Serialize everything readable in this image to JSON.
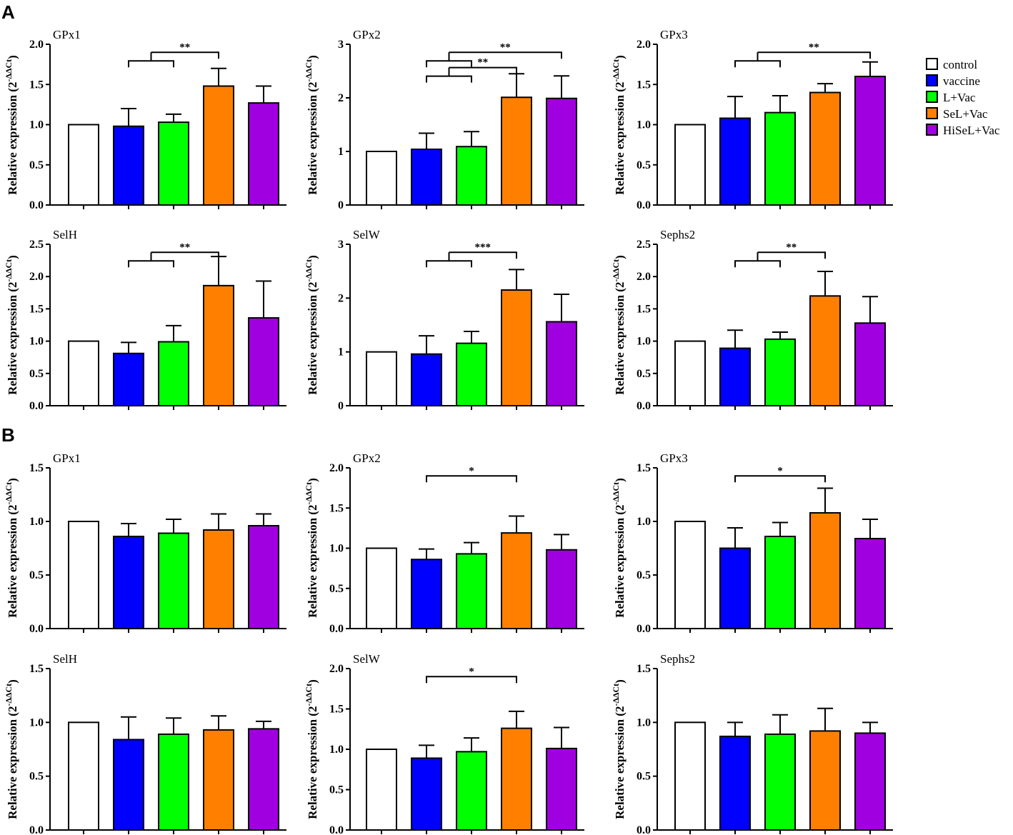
{
  "panels": [
    {
      "letter": "A"
    },
    {
      "letter": "B"
    }
  ],
  "colors": {
    "control": "#ffffff",
    "vaccine": "#0000ff",
    "L+Vac": "#00ff00",
    "SeL+Vac": "#ff8000",
    "HiSeL+Vac": "#a000e0",
    "axis": "#000000"
  },
  "legend": {
    "items": [
      {
        "label": "control",
        "color": "#ffffff"
      },
      {
        "label": "vaccine",
        "color": "#0000ff"
      },
      {
        "label": "L+Vac",
        "color": "#00ff00"
      },
      {
        "label": "SeL+Vac",
        "color": "#ff8000"
      },
      {
        "label": "HiSeL+Vac",
        "color": "#a000e0"
      }
    ]
  },
  "y_label_main": "Relative expression (2",
  "y_label_exp": "-ΔΔCt",
  "y_label_close": ")",
  "chart_data": [
    {
      "id": "A-GPx1",
      "panel": "A",
      "type": "bar",
      "title": "GPx1",
      "categories": [
        "control",
        "vaccine",
        "L+Vac",
        "SeL+Vac",
        "HiSeL+Vac"
      ],
      "values": [
        1.0,
        0.98,
        1.03,
        1.48,
        1.27
      ],
      "errors": [
        0,
        0.22,
        0.1,
        0.22,
        0.21
      ],
      "ylim": [
        0,
        2.0
      ],
      "yticks": [
        "0.0",
        "0.5",
        "1.0",
        "1.5",
        "2.0"
      ],
      "ylabel": "Relative expression (2^-ΔΔCt)",
      "sig": [
        {
          "text": "**",
          "from": [
            1,
            2
          ],
          "to": [
            3
          ]
        }
      ]
    },
    {
      "id": "A-GPx2",
      "panel": "A",
      "type": "bar",
      "title": "GPx2",
      "categories": [
        "control",
        "vaccine",
        "L+Vac",
        "SeL+Vac",
        "HiSeL+Vac"
      ],
      "values": [
        1.0,
        1.04,
        1.09,
        2.01,
        1.99
      ],
      "errors": [
        0,
        0.3,
        0.28,
        0.44,
        0.42
      ],
      "ylim": [
        0,
        3
      ],
      "yticks": [
        "0",
        "1",
        "2",
        "3"
      ],
      "ylabel": "Relative expression (2^-ΔΔCt)",
      "sig": [
        {
          "text": "**",
          "from": [
            1,
            2
          ],
          "to": [
            3
          ]
        },
        {
          "text": "**",
          "from": [
            1,
            2
          ],
          "to": [
            4
          ]
        }
      ]
    },
    {
      "id": "A-GPx3",
      "panel": "A",
      "type": "bar",
      "title": "GPx3",
      "categories": [
        "control",
        "vaccine",
        "L+Vac",
        "SeL+Vac",
        "HiSeL+Vac"
      ],
      "values": [
        1.0,
        1.08,
        1.15,
        1.4,
        1.6
      ],
      "errors": [
        0,
        0.27,
        0.21,
        0.11,
        0.18
      ],
      "ylim": [
        0,
        2.0
      ],
      "yticks": [
        "0.0",
        "0.5",
        "1.0",
        "1.5",
        "2.0"
      ],
      "ylabel": "Relative expression (2^-ΔΔCt)",
      "sig": [
        {
          "text": "**",
          "from": [
            1,
            2
          ],
          "to": [
            4
          ]
        }
      ]
    },
    {
      "id": "A-SelH",
      "panel": "A",
      "type": "bar",
      "title": "SelH",
      "categories": [
        "control",
        "vaccine",
        "L+Vac",
        "SeL+Vac",
        "HiSeL+Vac"
      ],
      "values": [
        1.0,
        0.81,
        0.99,
        1.86,
        1.36
      ],
      "errors": [
        0,
        0.17,
        0.25,
        0.45,
        0.57
      ],
      "ylim": [
        0,
        2.5
      ],
      "yticks": [
        "0.0",
        "0.5",
        "1.0",
        "1.5",
        "2.0",
        "2.5"
      ],
      "ylabel": "Relative expression (2^-ΔΔCt)",
      "sig": [
        {
          "text": "**",
          "from": [
            1,
            2
          ],
          "to": [
            3
          ]
        }
      ]
    },
    {
      "id": "A-SelW",
      "panel": "A",
      "type": "bar",
      "title": "SelW",
      "categories": [
        "control",
        "vaccine",
        "L+Vac",
        "SeL+Vac",
        "HiSeL+Vac"
      ],
      "values": [
        1.0,
        0.96,
        1.16,
        2.15,
        1.56
      ],
      "errors": [
        0,
        0.34,
        0.22,
        0.38,
        0.51
      ],
      "ylim": [
        0,
        3
      ],
      "yticks": [
        "0",
        "1",
        "2",
        "3"
      ],
      "ylabel": "Relative expression (2^-ΔΔCt)",
      "sig": [
        {
          "text": "***",
          "from": [
            1,
            2
          ],
          "to": [
            3
          ]
        }
      ]
    },
    {
      "id": "A-Sephs2",
      "panel": "A",
      "type": "bar",
      "title": "Sephs2",
      "categories": [
        "control",
        "vaccine",
        "L+Vac",
        "SeL+Vac",
        "HiSeL+Vac"
      ],
      "values": [
        1.0,
        0.89,
        1.03,
        1.7,
        1.28
      ],
      "errors": [
        0,
        0.28,
        0.11,
        0.38,
        0.41
      ],
      "ylim": [
        0,
        2.5
      ],
      "yticks": [
        "0.0",
        "0.5",
        "1.0",
        "1.5",
        "2.0",
        "2.5"
      ],
      "ylabel": "Relative expression (2^-ΔΔCt)",
      "sig": [
        {
          "text": "**",
          "from": [
            1,
            2
          ],
          "to": [
            3
          ]
        }
      ]
    },
    {
      "id": "B-GPx1",
      "panel": "B",
      "type": "bar",
      "title": "GPx1",
      "categories": [
        "control",
        "vaccine",
        "L+Vac",
        "SeL+Vac",
        "HiSeL+Vac"
      ],
      "values": [
        1.0,
        0.86,
        0.89,
        0.92,
        0.96
      ],
      "errors": [
        0,
        0.12,
        0.13,
        0.15,
        0.11
      ],
      "ylim": [
        0,
        1.5
      ],
      "yticks": [
        "0.0",
        "0.5",
        "1.0",
        "1.5"
      ],
      "ylabel": "Relative expression (2^-ΔΔCt)",
      "sig": []
    },
    {
      "id": "B-GPx2",
      "panel": "B",
      "type": "bar",
      "title": "GPx2",
      "categories": [
        "control",
        "vaccine",
        "L+Vac",
        "SeL+Vac",
        "HiSeL+Vac"
      ],
      "values": [
        1.0,
        0.86,
        0.93,
        1.19,
        0.98
      ],
      "errors": [
        0,
        0.13,
        0.14,
        0.21,
        0.19
      ],
      "ylim": [
        0,
        2.0
      ],
      "yticks": [
        "0.0",
        "0.5",
        "1.0",
        "1.5",
        "2.0"
      ],
      "ylabel": "Relative expression (2^-ΔΔCt)",
      "sig": [
        {
          "text": "*",
          "from": [
            1
          ],
          "to": [
            3
          ]
        }
      ]
    },
    {
      "id": "B-GPx3",
      "panel": "B",
      "type": "bar",
      "title": "GPx3",
      "categories": [
        "control",
        "vaccine",
        "L+Vac",
        "SeL+Vac",
        "HiSeL+Vac"
      ],
      "values": [
        1.0,
        0.75,
        0.86,
        1.08,
        0.84
      ],
      "errors": [
        0,
        0.19,
        0.13,
        0.23,
        0.18
      ],
      "ylim": [
        0,
        1.5
      ],
      "yticks": [
        "0.0",
        "0.5",
        "1.0",
        "1.5"
      ],
      "ylabel": "Relative expression (2^-ΔΔCt)",
      "sig": [
        {
          "text": "*",
          "from": [
            1
          ],
          "to": [
            3
          ]
        }
      ]
    },
    {
      "id": "B-SelH",
      "panel": "B",
      "type": "bar",
      "title": "SelH",
      "categories": [
        "control",
        "vaccine",
        "L+Vac",
        "SeL+Vac",
        "HiSeL+Vac"
      ],
      "values": [
        1.0,
        0.84,
        0.89,
        0.93,
        0.94
      ],
      "errors": [
        0,
        0.21,
        0.15,
        0.13,
        0.07
      ],
      "ylim": [
        0,
        1.5
      ],
      "yticks": [
        "0.0",
        "0.5",
        "1.0",
        "1.5"
      ],
      "ylabel": "Relative expression (2^-ΔΔCt)",
      "sig": []
    },
    {
      "id": "B-SelW",
      "panel": "B",
      "type": "bar",
      "title": "SelW",
      "categories": [
        "control",
        "vaccine",
        "L+Vac",
        "SeL+Vac",
        "HiSeL+Vac"
      ],
      "values": [
        1.0,
        0.89,
        0.97,
        1.26,
        1.01
      ],
      "errors": [
        0,
        0.16,
        0.17,
        0.21,
        0.26
      ],
      "ylim": [
        0,
        2.0
      ],
      "yticks": [
        "0.0",
        "0.5",
        "1.0",
        "1.5",
        "2.0"
      ],
      "ylabel": "Relative expression (2^-ΔΔCt)",
      "sig": [
        {
          "text": "*",
          "from": [
            1
          ],
          "to": [
            3
          ]
        }
      ]
    },
    {
      "id": "B-Sephs2",
      "panel": "B",
      "type": "bar",
      "title": "Sephs2",
      "categories": [
        "control",
        "vaccine",
        "L+Vac",
        "SeL+Vac",
        "HiSeL+Vac"
      ],
      "values": [
        1.0,
        0.87,
        0.89,
        0.92,
        0.9
      ],
      "errors": [
        0,
        0.13,
        0.18,
        0.21,
        0.1
      ],
      "ylim": [
        0,
        1.5
      ],
      "yticks": [
        "0.0",
        "0.5",
        "1.0",
        "1.5"
      ],
      "ylabel": "Relative expression (2^-ΔΔCt)",
      "sig": []
    }
  ]
}
